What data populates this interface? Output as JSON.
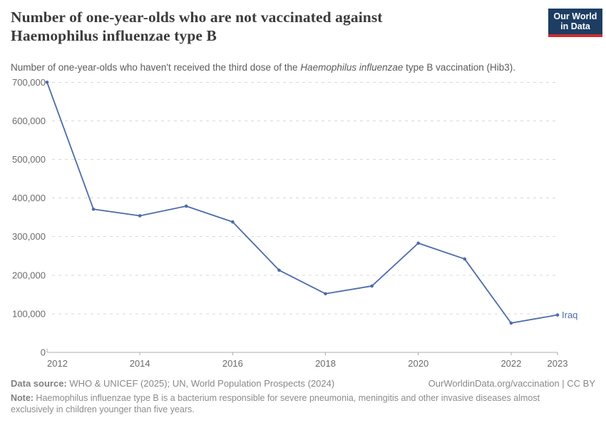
{
  "header": {
    "title_line1": "Number of one-year-olds who are not vaccinated against",
    "title_line2": "Haemophilus influenzae type B",
    "logo": {
      "line1": "Our World",
      "line2": "in Data",
      "bg_color": "#1d3d63",
      "accent_color": "#cb2f2f"
    }
  },
  "subtitle": {
    "prefix": "Number of one-year-olds who haven't received the third dose of the ",
    "italic": "Haemophilus influenzae",
    "suffix": " type B vaccination (Hib3)."
  },
  "chart_data": {
    "type": "line",
    "title": "Number of one-year-olds who are not vaccinated against Haemophilus influenzae type B",
    "x": [
      2012,
      2013,
      2014,
      2015,
      2016,
      2017,
      2018,
      2019,
      2020,
      2021,
      2022,
      2023
    ],
    "series": [
      {
        "name": "Iraq",
        "color": "#4c6bab",
        "values": [
          700000,
          371000,
          354000,
          379000,
          338000,
          213000,
          152000,
          172000,
          283000,
          242000,
          76000,
          97000
        ]
      }
    ],
    "end_label": "Iraq",
    "xlabel": "",
    "ylabel": "",
    "ylim": [
      0,
      700000
    ],
    "yticks": [
      0,
      100000,
      200000,
      300000,
      400000,
      500000,
      600000,
      700000
    ],
    "ytick_labels": [
      "0",
      "100,000",
      "200,000",
      "300,000",
      "400,000",
      "500,000",
      "600,000",
      "700,000"
    ],
    "xtick_years": [
      2012,
      2014,
      2016,
      2018,
      2020,
      2022,
      2023
    ],
    "xtick_labels": [
      "2012",
      "2014",
      "2016",
      "2018",
      "2020",
      "2022",
      "2023"
    ],
    "grid": "horizontal-dashed",
    "grid_color": "#d9d9d9",
    "axis_color": "#adadad",
    "tick_label_color": "#6b6b6b",
    "legend_position": "end-of-line"
  },
  "footer": {
    "datasource_label": "Data source:",
    "datasource_text": " WHO & UNICEF (2025); UN, World Population Prospects (2024)",
    "attribution": "OurWorldinData.org/vaccination | CC BY",
    "note_label": "Note:",
    "note_text": " Haemophilus influenzae type B is a bacterium responsible for severe pneumonia, meningitis and other invasive diseases almost exclusively in children younger than five years."
  }
}
